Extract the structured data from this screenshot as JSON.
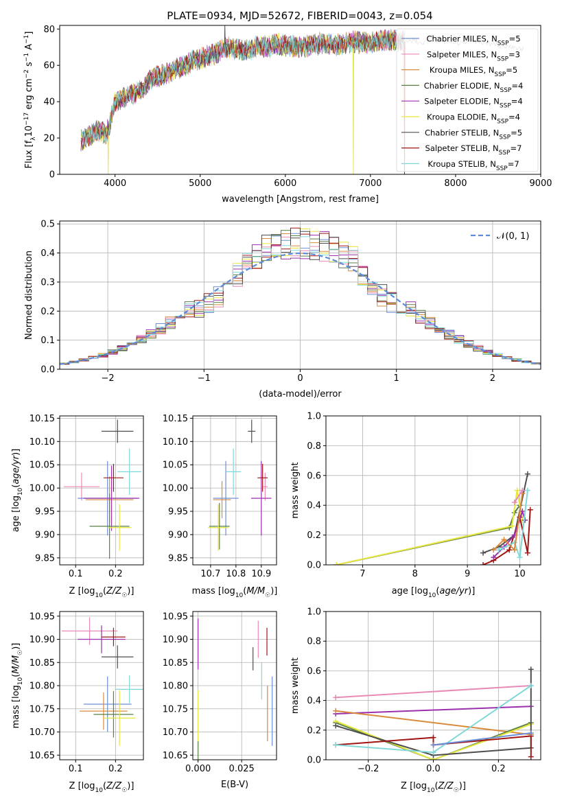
{
  "title": "PLATE=0934, MJD=52672, FIBERID=0043, z=0.054",
  "series": [
    {
      "name": "Chabrier MILES",
      "nssp": "5",
      "color": "#6a8fd8"
    },
    {
      "name": "Salpeter MILES",
      "nssp": "3",
      "color": "#e989b5"
    },
    {
      "name": "Kroupa MILES",
      "nssp": "5",
      "color": "#d98a3b"
    },
    {
      "name": "Chabrier ELODIE",
      "nssp": "4",
      "color": "#5a7f45"
    },
    {
      "name": "Salpeter ELODIE",
      "nssp": "4",
      "color": "#9b2fae"
    },
    {
      "name": "Kroupa ELODIE",
      "nssp": "4",
      "color": "#e6e63c"
    },
    {
      "name": "Chabrier STELIB",
      "nssp": "5",
      "color": "#4d4d4d"
    },
    {
      "name": "Salpeter STELIB",
      "nssp": "7",
      "color": "#a11515"
    },
    {
      "name": "Kroupa STELIB",
      "nssp": "7",
      "color": "#7fd8d8"
    }
  ],
  "chart_data": [
    {
      "id": "spectrum",
      "type": "line",
      "xlabel": "wavelength [Angstrom, rest frame]",
      "ylabel": "Flux [f_λ10^-17 erg cm^-2 s^-1 A^-1]",
      "xlim": [
        3350,
        9000
      ],
      "ylim": [
        0,
        82
      ],
      "xticks": [
        4000,
        5000,
        6000,
        7000,
        8000,
        9000
      ],
      "yticks": [
        0,
        20,
        40,
        60,
        80
      ],
      "legend": "top-right",
      "grid": false,
      "continuum": {
        "x": [
          3600,
          3700,
          3800,
          3900,
          3950,
          4000,
          4100,
          4200,
          4300,
          4400,
          4500,
          4600,
          4700,
          4800,
          4900,
          5000,
          5100,
          5200,
          5300,
          5400,
          5500,
          5600,
          5700,
          5800,
          5900,
          6000,
          6200,
          6400,
          6600,
          6800,
          7000,
          7200,
          7400
        ],
        "y": [
          18,
          22,
          24,
          22,
          30,
          40,
          42,
          44,
          46,
          52,
          54,
          55,
          58,
          59,
          62,
          64,
          65,
          67,
          70,
          69,
          68,
          69,
          71,
          70,
          72,
          71,
          70,
          72,
          71,
          73,
          72,
          74,
          73
        ]
      },
      "model_continuum": {
        "x": [
          7400,
          7500,
          7600,
          7700,
          7800,
          7900,
          8000,
          8200,
          8400,
          8600,
          8800
        ],
        "y": [
          73,
          74,
          72,
          76,
          74,
          73,
          72,
          74,
          72,
          70,
          69
        ]
      },
      "spikes": [
        {
          "x": 3920,
          "y": 0
        },
        {
          "x": 5290,
          "y": 82
        },
        {
          "x": 6800,
          "y": 0
        },
        {
          "x": 7400,
          "y": 0
        }
      ]
    },
    {
      "id": "residuals",
      "type": "histogram",
      "xlabel": "(data-model)/error",
      "ylabel": "Normed distribution",
      "xlim": [
        -2.5,
        2.5
      ],
      "ylim": [
        0,
        0.51
      ],
      "xticks": [
        -2,
        -1,
        0,
        1,
        2
      ],
      "yticks": [
        0.0,
        0.1,
        0.2,
        0.3,
        0.4,
        0.5
      ],
      "grid": true,
      "legend": "top-right",
      "gaussian_label": "𝒩(0, 1)",
      "bin_width": 0.1,
      "bin_start": -2.5
    },
    {
      "id": "age-vs-Z",
      "type": "errorbar",
      "xlabel": "Z [log10(Z/Z☉)]",
      "ylabel": "age [log10(age/yr)]",
      "xlim": [
        0.06,
        0.27
      ],
      "ylim": [
        9.835,
        10.155
      ],
      "xticks": [
        0.1,
        0.2
      ],
      "yticks": [
        9.85,
        9.9,
        9.95,
        10.0,
        10.05,
        10.1,
        10.15
      ],
      "grid": true,
      "points": [
        {
          "series": 1,
          "x": 0.115,
          "y": 10.003,
          "xerr": 0.045,
          "yerr": 0.03
        },
        {
          "series": 0,
          "x": 0.18,
          "y": 9.978,
          "xerr": 0.075,
          "yerr": 0.08
        },
        {
          "series": 2,
          "x": 0.185,
          "y": 9.975,
          "xerr": 0.06,
          "yerr": 0.05
        },
        {
          "series": 4,
          "x": 0.19,
          "y": 9.978,
          "xerr": 0.07,
          "yerr": 0.07
        },
        {
          "series": 3,
          "x": 0.185,
          "y": 9.918,
          "xerr": 0.05,
          "yerr": 0.07
        },
        {
          "series": 5,
          "x": 0.21,
          "y": 9.915,
          "xerr": 0.03,
          "yerr": 0.05
        },
        {
          "series": 6,
          "x": 0.205,
          "y": 10.122,
          "xerr": 0.04,
          "yerr": 0.025
        },
        {
          "series": 7,
          "x": 0.195,
          "y": 10.022,
          "xerr": 0.025,
          "yerr": 0.03
        },
        {
          "series": 8,
          "x": 0.235,
          "y": 10.035,
          "xerr": 0.03,
          "yerr": 0.05
        }
      ]
    },
    {
      "id": "age-vs-mass",
      "type": "errorbar",
      "xlabel": "mass [log10(M/M☉)]",
      "ylabel": "",
      "xlim": [
        10.63,
        10.96
      ],
      "ylim": [
        9.835,
        10.155
      ],
      "xticks": [
        10.7,
        10.8,
        10.9
      ],
      "yticks": [
        9.85,
        9.9,
        9.95,
        10.0,
        10.05,
        10.1,
        10.15
      ],
      "grid": true,
      "points": [
        {
          "series": 1,
          "x": 10.915,
          "y": 10.003,
          "xerr": 0.01,
          "yerr": 0.03
        },
        {
          "series": 0,
          "x": 10.76,
          "y": 9.978,
          "xerr": 0.05,
          "yerr": 0.08
        },
        {
          "series": 2,
          "x": 10.745,
          "y": 9.975,
          "xerr": 0.035,
          "yerr": 0.04
        },
        {
          "series": 4,
          "x": 10.9,
          "y": 9.978,
          "xerr": 0.04,
          "yerr": 0.08
        },
        {
          "series": 3,
          "x": 10.735,
          "y": 9.918,
          "xerr": 0.04,
          "yerr": 0.05
        },
        {
          "series": 5,
          "x": 10.73,
          "y": 9.915,
          "xerr": 0.04,
          "yerr": 0.05
        },
        {
          "series": 6,
          "x": 10.862,
          "y": 10.122,
          "xerr": 0.015,
          "yerr": 0.025
        },
        {
          "series": 7,
          "x": 10.905,
          "y": 10.022,
          "xerr": 0.02,
          "yerr": 0.03
        },
        {
          "series": 8,
          "x": 10.79,
          "y": 10.035,
          "xerr": 0.03,
          "yerr": 0.05
        }
      ]
    },
    {
      "id": "mass-weight-vs-age",
      "type": "line",
      "xlabel": "age [log10(age/yr)]",
      "ylabel": "mass weight",
      "xlim": [
        6.3,
        10.4
      ],
      "ylim": [
        0,
        1
      ],
      "xticks": [
        7,
        8,
        9,
        10
      ],
      "yticks": [
        0.0,
        0.2,
        0.4,
        0.6,
        0.8,
        1.0
      ],
      "grid": true,
      "lines": [
        {
          "series": 3,
          "x": [
            6.5,
            9.8,
            9.9,
            10.0
          ],
          "y": [
            0.0,
            0.25,
            0.35,
            0.4
          ]
        },
        {
          "series": 5,
          "x": [
            6.5,
            9.85,
            9.95,
            10.05
          ],
          "y": [
            0.0,
            0.26,
            0.5,
            0.3
          ]
        },
        {
          "series": 6,
          "x": [
            9.3,
            9.6,
            9.9,
            10.15
          ],
          "y": [
            0.08,
            0.12,
            0.2,
            0.61
          ]
        },
        {
          "series": 7,
          "x": [
            9.3,
            9.5,
            9.8,
            10.0,
            10.15,
            10.2
          ],
          "y": [
            0.0,
            0.03,
            0.1,
            0.32,
            0.08,
            0.37
          ]
        },
        {
          "series": 4,
          "x": [
            9.5,
            9.7,
            9.9,
            10.05,
            10.1
          ],
          "y": [
            0.05,
            0.12,
            0.2,
            0.36,
            0.3
          ]
        },
        {
          "series": 8,
          "x": [
            9.6,
            9.9,
            10.0,
            10.15
          ],
          "y": [
            0.1,
            0.15,
            0.05,
            0.5
          ]
        },
        {
          "series": 2,
          "x": [
            9.5,
            9.7,
            9.9,
            10.05
          ],
          "y": [
            0.1,
            0.17,
            0.1,
            0.48
          ]
        },
        {
          "series": 1,
          "x": [
            9.9,
            10.05
          ],
          "y": [
            0.42,
            0.5
          ]
        }
      ]
    },
    {
      "id": "mass-vs-Z",
      "type": "errorbar",
      "xlabel": "Z [log10(Z/Z☉)]",
      "ylabel": "mass [log10(M/M☉)]",
      "xlim": [
        0.06,
        0.27
      ],
      "ylim": [
        10.64,
        10.96
      ],
      "xticks": [
        0.1,
        0.2
      ],
      "yticks": [
        10.65,
        10.7,
        10.75,
        10.8,
        10.85,
        10.9,
        10.95
      ],
      "grid": true,
      "points": [
        {
          "series": 1,
          "x": 0.135,
          "y": 10.918,
          "xerr": 0.07,
          "yerr": 0.03
        },
        {
          "series": 4,
          "x": 0.165,
          "y": 10.9,
          "xerr": 0.06,
          "yerr": 0.03
        },
        {
          "series": 7,
          "x": 0.195,
          "y": 10.905,
          "xerr": 0.03,
          "yerr": 0.02
        },
        {
          "series": 6,
          "x": 0.205,
          "y": 10.862,
          "xerr": 0.04,
          "yerr": 0.025
        },
        {
          "series": 8,
          "x": 0.235,
          "y": 10.792,
          "xerr": 0.035,
          "yerr": 0.03
        },
        {
          "series": 0,
          "x": 0.18,
          "y": 10.76,
          "xerr": 0.06,
          "yerr": 0.06
        },
        {
          "series": 2,
          "x": 0.17,
          "y": 10.745,
          "xerr": 0.06,
          "yerr": 0.04
        },
        {
          "series": 3,
          "x": 0.195,
          "y": 10.738,
          "xerr": 0.05,
          "yerr": 0.05
        },
        {
          "series": 5,
          "x": 0.21,
          "y": 10.73,
          "xerr": 0.04,
          "yerr": 0.06
        }
      ]
    },
    {
      "id": "mass-vs-ebv",
      "type": "errorbar",
      "xlabel": "E(B-V)",
      "ylabel": "",
      "xlim": [
        -0.003,
        0.045
      ],
      "ylim": [
        10.64,
        10.96
      ],
      "xticks": [
        0.0,
        0.025
      ],
      "yticks": [
        10.65,
        10.7,
        10.75,
        10.8,
        10.85,
        10.9,
        10.95
      ],
      "grid": true,
      "points": [
        {
          "series": 4,
          "x": 0.0,
          "y": 10.89,
          "xerr": 0,
          "yerr": 0.055
        },
        {
          "series": 5,
          "x": 0.0,
          "y": 10.73,
          "xerr": 0,
          "yerr": 0.06
        },
        {
          "series": 3,
          "x": 0.0,
          "y": 10.66,
          "xerr": 0,
          "yerr": 0.02
        },
        {
          "series": 6,
          "x": 0.0315,
          "y": 10.858,
          "xerr": 0,
          "yerr": 0.025
        },
        {
          "series": 1,
          "x": 0.0345,
          "y": 10.9,
          "xerr": 0,
          "yerr": 0.04
        },
        {
          "series": 8,
          "x": 0.0365,
          "y": 10.81,
          "xerr": 0,
          "yerr": 0.04
        },
        {
          "series": 7,
          "x": 0.0395,
          "y": 10.895,
          "xerr": 0,
          "yerr": 0.03
        },
        {
          "series": 2,
          "x": 0.0398,
          "y": 10.74,
          "xerr": 0,
          "yerr": 0.06
        },
        {
          "series": 0,
          "x": 0.0425,
          "y": 10.745,
          "xerr": 0,
          "yerr": 0.075
        }
      ]
    },
    {
      "id": "mass-weight-vs-Z",
      "type": "line",
      "xlabel": "Z [log10(Z/Z☉)]",
      "ylabel": "mass weight",
      "xlim": [
        -0.33,
        0.33
      ],
      "ylim": [
        0,
        1
      ],
      "xticks": [
        -0.2,
        0.0,
        0.2
      ],
      "yticks": [
        0.0,
        0.2,
        0.4,
        0.6,
        0.8,
        1.0
      ],
      "grid": true,
      "lines": [
        {
          "series": 1,
          "x": [
            -0.3,
            0.3
          ],
          "y": [
            0.42,
            0.5
          ]
        },
        {
          "series": 4,
          "x": [
            -0.3,
            0.3
          ],
          "y": [
            0.31,
            0.36
          ]
        },
        {
          "series": 2,
          "x": [
            -0.3,
            0.3
          ],
          "y": [
            0.33,
            0.17
          ]
        },
        {
          "series": 3,
          "x": [
            -0.3,
            0.0,
            0.3
          ],
          "y": [
            0.25,
            0.0,
            0.25
          ]
        },
        {
          "series": 5,
          "x": [
            -0.3,
            0.0,
            0.3
          ],
          "y": [
            0.26,
            0.0,
            0.24
          ]
        },
        {
          "series": 6,
          "x": [
            -0.3,
            0.0,
            0.3,
            0.3
          ],
          "y": [
            0.23,
            0.03,
            0.08,
            0.61
          ]
        },
        {
          "series": 7,
          "x": [
            -0.3,
            0.0,
            0.0,
            0.3,
            0.3
          ],
          "y": [
            0.1,
            0.15,
            0.1,
            0.16,
            0.02
          ]
        },
        {
          "series": 8,
          "x": [
            -0.3,
            0.0,
            0.3
          ],
          "y": [
            0.1,
            0.05,
            0.5
          ]
        },
        {
          "series": 0,
          "x": [
            0.0,
            0.3
          ],
          "y": [
            0.1,
            0.18
          ]
        }
      ]
    }
  ]
}
